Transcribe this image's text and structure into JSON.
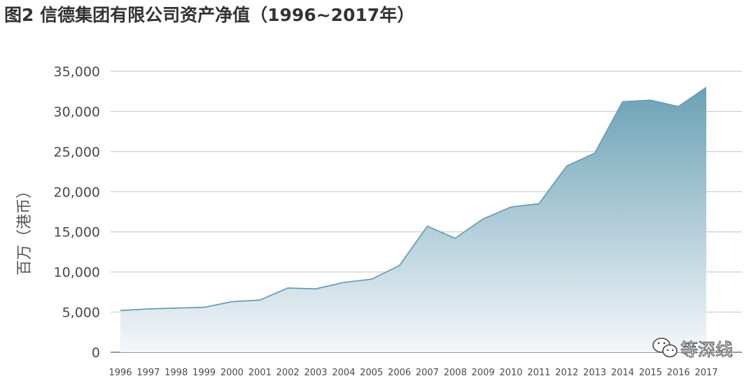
{
  "chart_data": {
    "type": "area",
    "title": "图2 信德集团有限公司资产净值（1996~2017年）",
    "ylabel": "百万（港币）",
    "xlabel": "",
    "ylim": [
      0,
      35000
    ],
    "yticks": [
      0,
      5000,
      10000,
      15000,
      20000,
      25000,
      30000,
      35000
    ],
    "ytick_labels": [
      "0",
      "5,000",
      "10,000",
      "15,000",
      "20,000",
      "25,000",
      "30,000",
      "35,000"
    ],
    "grid": "horizontal",
    "legend": "none",
    "colors": {
      "fill_top": "#6aa1b5",
      "fill_bottom": "#f4f7fa",
      "line": "#6b9fb3",
      "grid": "#cccccc",
      "axis": "#9a9a9a"
    },
    "x": [
      "1996",
      "1997",
      "1998",
      "1999",
      "2000",
      "2001",
      "2002",
      "2003",
      "2004",
      "2005",
      "2006",
      "2007",
      "2008",
      "2009",
      "2010",
      "2011",
      "2012",
      "2013",
      "2014",
      "2015",
      "2016",
      "2017"
    ],
    "values": [
      5200,
      5400,
      5500,
      5600,
      6300,
      6500,
      8000,
      7900,
      8700,
      9100,
      10800,
      15700,
      14200,
      16600,
      18100,
      18500,
      23200,
      24800,
      31200,
      31400,
      30600,
      33000
    ]
  },
  "watermark": {
    "icon": "wechat-icon",
    "text": "等深线"
  }
}
